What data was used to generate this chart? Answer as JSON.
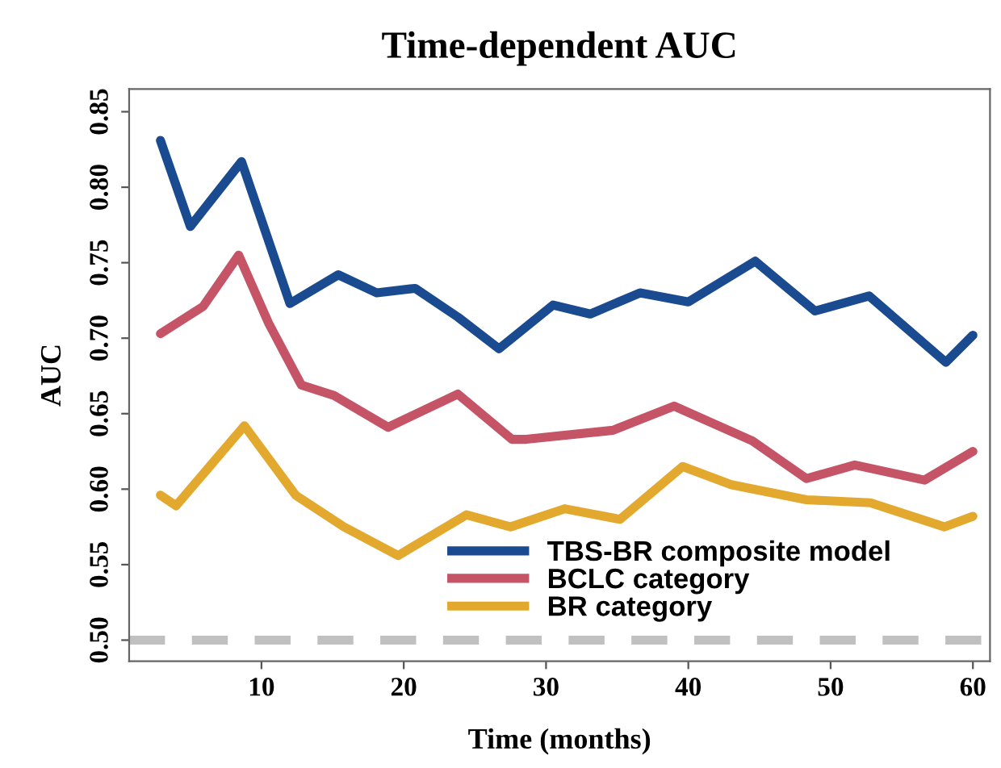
{
  "chart_data": {
    "type": "line",
    "title": "Time-dependent AUC",
    "xlabel": "Time (months)",
    "ylabel": "AUC",
    "xlim": [
      0.7,
      61.2
    ],
    "ylim": [
      0.486,
      0.865
    ],
    "xticks": [
      10,
      20,
      30,
      40,
      50,
      60
    ],
    "yticks": [
      {
        "value": 0.5,
        "label": "0.50"
      },
      {
        "value": 0.55,
        "label": "0.55"
      },
      {
        "value": 0.6,
        "label": "0.60"
      },
      {
        "value": 0.65,
        "label": "0.65"
      },
      {
        "value": 0.7,
        "label": "0.70"
      },
      {
        "value": 0.75,
        "label": "0.75"
      },
      {
        "value": 0.8,
        "label": "0.80"
      },
      {
        "value": 0.85,
        "label": "0.85"
      }
    ],
    "grid": false,
    "legend": "bottom",
    "line_style": "solid",
    "marker": "none",
    "ref_lines": [
      {
        "axis": "y",
        "value": 0.5,
        "color": "#c0c0c0",
        "line_style": "dashed"
      }
    ],
    "series": [
      {
        "name": "TBS-BR composite model",
        "color": "#1a4a8f",
        "x": [
          2.9,
          5.0,
          8.6,
          12.0,
          15.4,
          18.1,
          20.8,
          23.8,
          26.7,
          30.5,
          33.1,
          36.6,
          40.0,
          44.7,
          48.9,
          52.7,
          58.1,
          60
        ],
        "values": [
          0.831,
          0.774,
          0.817,
          0.723,
          0.742,
          0.73,
          0.733,
          0.714,
          0.693,
          0.722,
          0.716,
          0.73,
          0.724,
          0.751,
          0.718,
          0.728,
          0.684,
          0.702
        ]
      },
      {
        "name": "BCLC category",
        "color": "#c45466",
        "x": [
          2.9,
          5.9,
          8.4,
          10.5,
          12.8,
          15.1,
          18.9,
          23.8,
          27.6,
          28.6,
          34.7,
          39.0,
          44.5,
          48.3,
          51.7,
          56.6,
          60
        ],
        "values": [
          0.703,
          0.721,
          0.755,
          0.71,
          0.669,
          0.662,
          0.641,
          0.663,
          0.633,
          0.633,
          0.639,
          0.655,
          0.632,
          0.607,
          0.616,
          0.606,
          0.625
        ]
      },
      {
        "name": "BR category",
        "color": "#e2a92e",
        "x": [
          2.9,
          4.0,
          8.8,
          12.4,
          15.8,
          19.6,
          24.4,
          27.5,
          31.3,
          35.2,
          39.6,
          43.0,
          48.3,
          52.8,
          58.0,
          60
        ],
        "values": [
          0.596,
          0.589,
          0.642,
          0.596,
          0.575,
          0.556,
          0.583,
          0.575,
          0.587,
          0.58,
          0.615,
          0.603,
          0.593,
          0.591,
          0.575,
          0.582
        ]
      }
    ]
  }
}
